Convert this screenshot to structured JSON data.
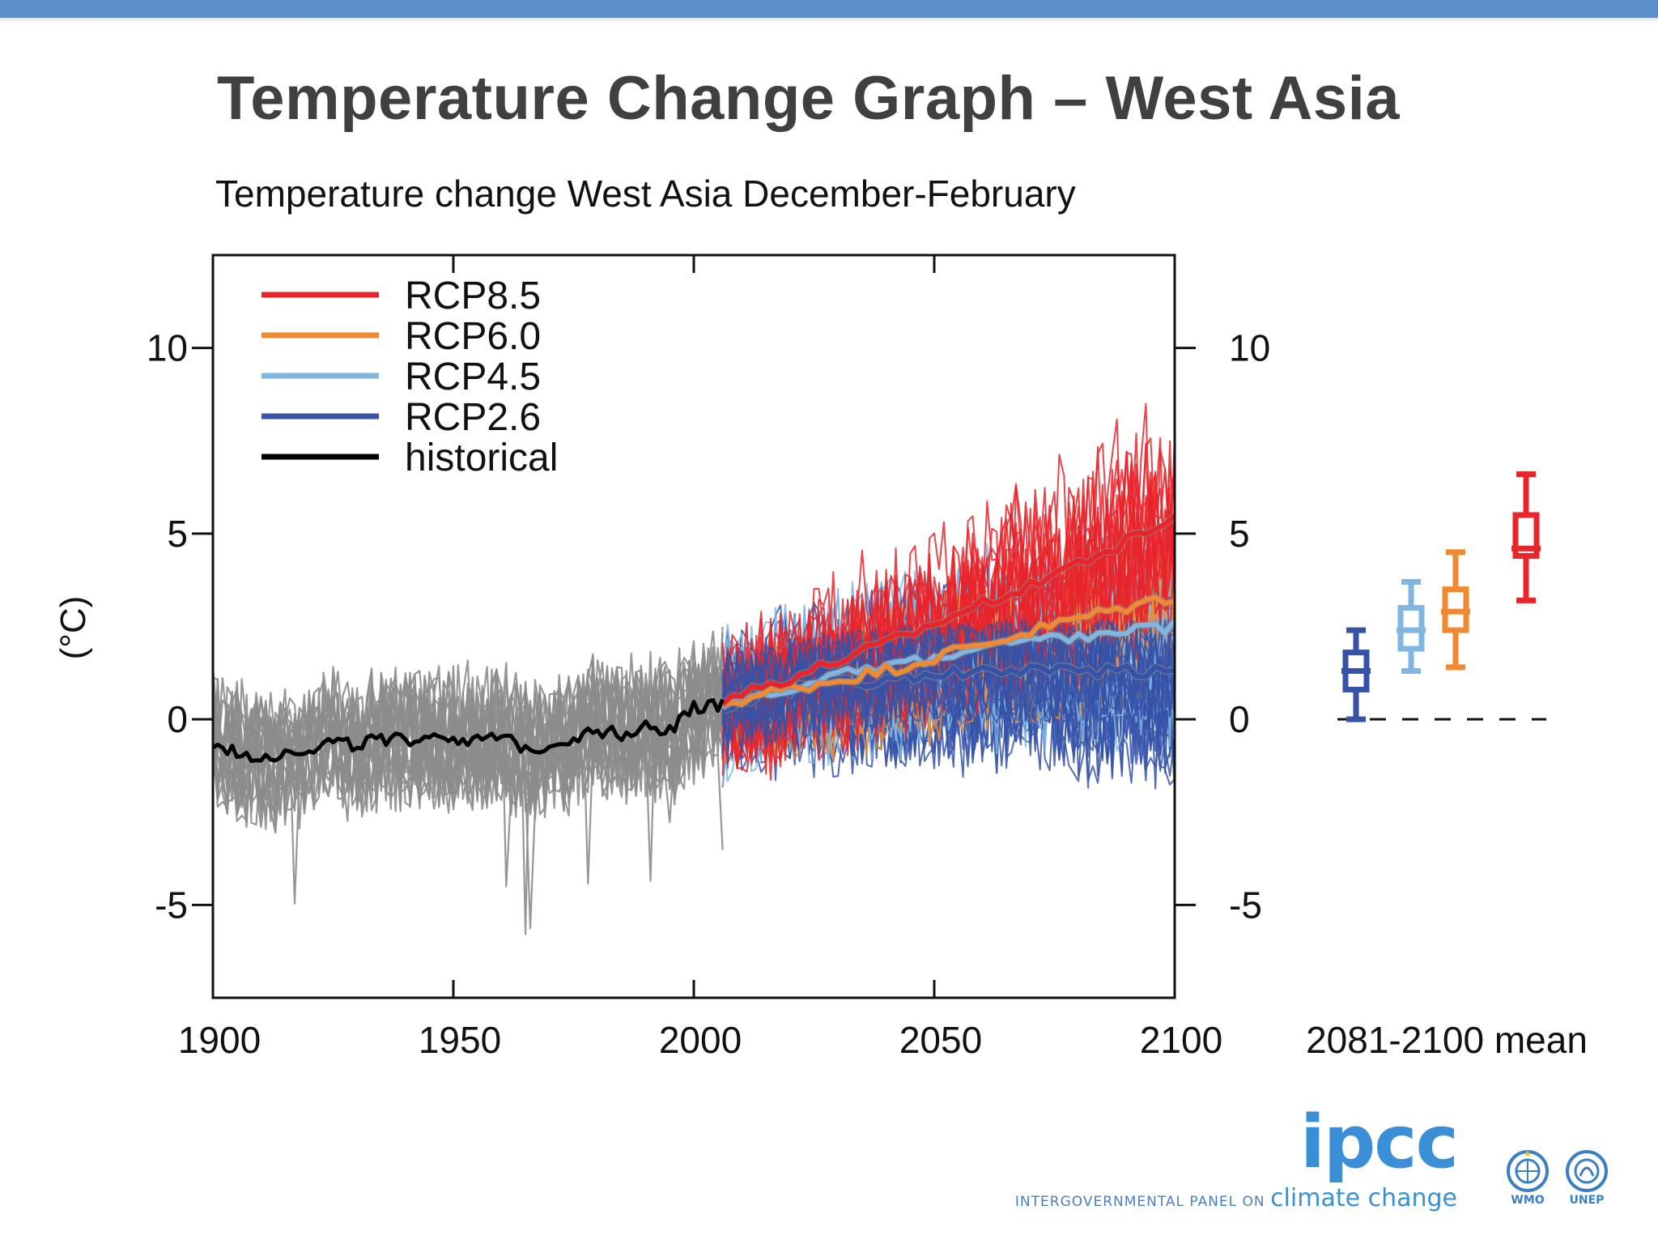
{
  "slide": {
    "title": "Temperature Change Graph – West Asia"
  },
  "chart_data": {
    "type": "line",
    "title": "Temperature change West Asia December-February",
    "ylabel": "(°C)",
    "xlabel": "",
    "xlim": [
      1900,
      2100
    ],
    "ylim": [
      -7.5,
      12.5
    ],
    "x_ticks": [
      1900,
      1950,
      2000,
      2050,
      2100
    ],
    "y_ticks": [
      -5,
      0,
      5,
      10
    ],
    "legend_position": "top-left",
    "grid": false,
    "series": [
      {
        "name": "historical",
        "color": "#000000",
        "spread_color": "#8c8c8c",
        "x": [
          1900,
          1905,
          1910,
          1915,
          1920,
          1925,
          1930,
          1935,
          1940,
          1945,
          1950,
          1955,
          1960,
          1965,
          1970,
          1975,
          1980,
          1985,
          1990,
          1995,
          2000,
          2005
        ],
        "y": [
          -0.7,
          -0.9,
          -1.0,
          -0.9,
          -0.8,
          -0.6,
          -0.7,
          -0.5,
          -0.6,
          -0.4,
          -0.5,
          -0.6,
          -0.5,
          -0.8,
          -0.7,
          -0.5,
          -0.3,
          -0.4,
          -0.2,
          -0.3,
          0.3,
          0.4
        ]
      },
      {
        "name": "RCP2.6",
        "color": "#3653a8",
        "x": [
          2006,
          2020,
          2040,
          2060,
          2080,
          2100
        ],
        "y": [
          0.4,
          0.8,
          1.1,
          1.3,
          1.3,
          1.3
        ]
      },
      {
        "name": "RCP4.5",
        "color": "#7fb6e2",
        "x": [
          2006,
          2020,
          2040,
          2060,
          2080,
          2100
        ],
        "y": [
          0.4,
          0.9,
          1.4,
          1.9,
          2.2,
          2.5
        ]
      },
      {
        "name": "RCP6.0",
        "color": "#ef8a32",
        "x": [
          2006,
          2020,
          2040,
          2060,
          2080,
          2100
        ],
        "y": [
          0.4,
          0.8,
          1.3,
          2.0,
          2.7,
          3.3
        ]
      },
      {
        "name": "RCP8.5",
        "color": "#e8252a",
        "x": [
          2006,
          2020,
          2040,
          2060,
          2080,
          2100
        ],
        "y": [
          0.5,
          1.1,
          2.0,
          3.1,
          4.2,
          5.4
        ]
      }
    ],
    "legend_order": [
      "RCP8.5",
      "RCP6.0",
      "RCP4.5",
      "RCP2.6",
      "historical"
    ],
    "mean_panel": {
      "label": "2081-2100 mean",
      "boxes": [
        {
          "name": "RCP2.6",
          "color": "#3653a8",
          "min": 0.0,
          "q1": 0.8,
          "median": 1.3,
          "q3": 1.8,
          "max": 2.4
        },
        {
          "name": "RCP4.5",
          "color": "#7fb6e2",
          "min": 1.3,
          "q1": 1.9,
          "median": 2.4,
          "q3": 3.0,
          "max": 3.7
        },
        {
          "name": "RCP6.0",
          "color": "#ef8a32",
          "min": 1.4,
          "q1": 2.4,
          "median": 2.9,
          "q3": 3.5,
          "max": 4.5
        },
        {
          "name": "RCP8.5",
          "color": "#e8252a",
          "min": 3.2,
          "q1": 4.4,
          "median": 4.6,
          "q3": 5.5,
          "max": 6.6
        }
      ]
    }
  },
  "logo": {
    "name": "ipcc",
    "tagline": "INTERGOVERNMENTAL PANEL ON",
    "tagline_big": "climate change"
  },
  "partners": [
    {
      "icon": "wmo-emblem-icon",
      "label": "WMO"
    },
    {
      "icon": "unep-emblem-icon",
      "label": "UNEP"
    }
  ]
}
